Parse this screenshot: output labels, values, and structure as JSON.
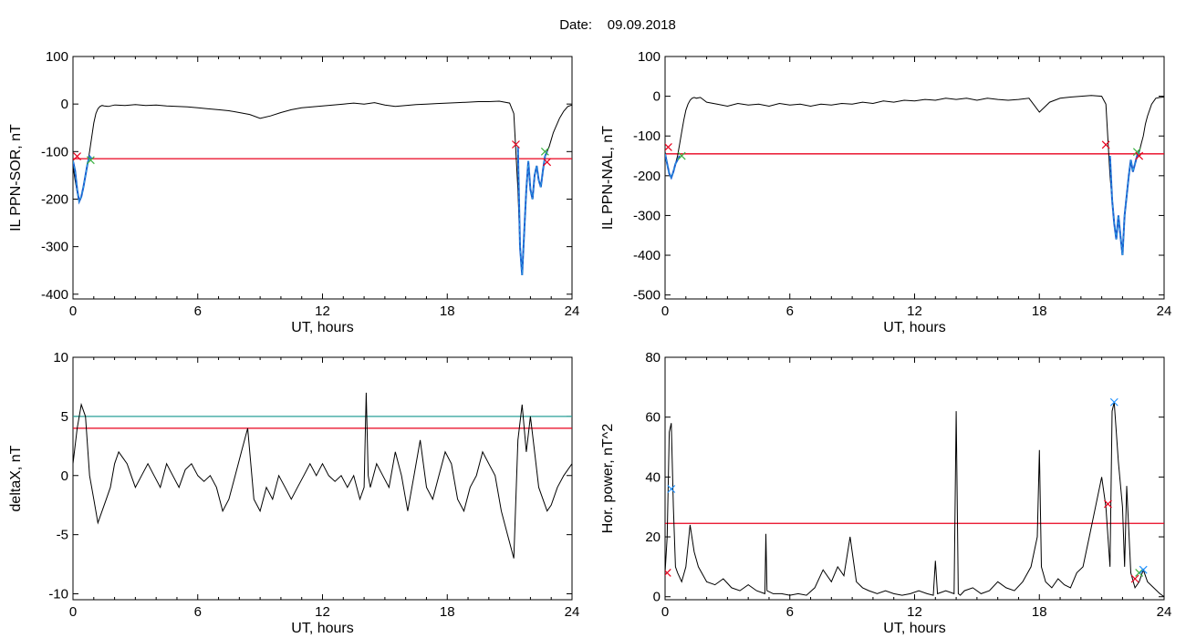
{
  "page": {
    "date_label": "Date:",
    "date_value": "09.09.2018"
  },
  "colors": {
    "trace": "#000000",
    "threshold": "#e8001c",
    "cyan_line": "#2aa198",
    "segment": "#1a5ecf",
    "segment_light": "#2e9fe0",
    "green_marker": "#3cb043",
    "red_marker": "#e8001c",
    "cyan_marker": "#1e90ff"
  },
  "chart_data": [
    {
      "id": "ppn-sor",
      "type": "line",
      "title": "",
      "xlabel": "UT, hours",
      "ylabel": "IL PPN-SOR, nT",
      "xlim": [
        0,
        24
      ],
      "ylim": [
        -410,
        100
      ],
      "xticks": [
        "0",
        "6",
        "12",
        "18",
        "24"
      ],
      "xtick_values": [
        0,
        6,
        12,
        18,
        24
      ],
      "yticks": [
        "100",
        "0",
        "-100",
        "-200",
        "-300",
        "-400"
      ],
      "ytick_values": [
        100,
        0,
        -100,
        -200,
        -300,
        -400
      ],
      "series": [
        {
          "x": [
            0,
            0.1,
            0.2,
            0.3,
            0.4,
            0.5,
            0.6,
            0.7,
            0.8,
            0.9,
            1.0,
            1.1,
            1.2,
            1.3,
            1.4,
            1.5,
            1.7,
            2.0,
            2.5,
            3.0,
            3.5,
            4.0,
            4.5,
            5.0,
            5.5,
            6.0,
            6.5,
            7.0,
            7.5,
            8.0,
            8.5,
            9.0,
            9.5,
            10.0,
            10.5,
            11.0,
            11.5,
            12.0,
            12.5,
            13.0,
            13.5,
            14.0,
            14.5,
            15.0,
            15.5,
            16.0,
            16.5,
            17.0,
            17.5,
            18.0,
            18.5,
            19.0,
            19.5,
            20.0,
            20.5,
            21.0,
            21.2,
            21.4,
            21.5,
            21.6,
            21.7,
            21.8,
            21.9,
            22.0,
            22.1,
            22.2,
            22.3,
            22.4,
            22.5,
            22.6,
            22.7,
            22.8,
            22.9,
            23.0,
            23.1,
            23.2,
            23.4,
            23.6,
            23.8,
            24.0
          ],
          "y": [
            -130,
            -160,
            -185,
            -205,
            -195,
            -175,
            -150,
            -125,
            -100,
            -70,
            -40,
            -20,
            -10,
            -5,
            -3,
            -4,
            -5,
            -2,
            -3,
            -1,
            -3,
            -2,
            -4,
            -5,
            -6,
            -8,
            -10,
            -12,
            -14,
            -18,
            -22,
            -30,
            -25,
            -18,
            -12,
            -8,
            -6,
            -4,
            -2,
            0,
            2,
            0,
            3,
            -2,
            -5,
            -3,
            -1,
            0,
            1,
            2,
            3,
            4,
            5,
            5,
            6,
            2,
            -20,
            -180,
            -300,
            -360,
            -270,
            -180,
            -120,
            -180,
            -200,
            -150,
            -130,
            -160,
            -175,
            -140,
            -110,
            -100,
            -90,
            -75,
            -60,
            -50,
            -30,
            -15,
            -5,
            -2
          ]
        }
      ],
      "threshold": -115,
      "segments": [
        {
          "x": [
            0,
            0.1,
            0.2,
            0.3,
            0.4,
            0.5,
            0.6,
            0.7,
            0.8,
            0.9
          ],
          "y": [
            -120,
            -140,
            -180,
            -205,
            -195,
            -175,
            -150,
            -125,
            -110,
            -115
          ]
        },
        {
          "x": [
            21.4,
            21.5,
            21.6,
            21.7,
            21.8,
            21.9,
            22.0,
            22.1,
            22.2,
            22.3,
            22.4,
            22.5,
            22.6,
            22.7,
            22.8
          ],
          "y": [
            -90,
            -300,
            -360,
            -270,
            -180,
            -120,
            -180,
            -200,
            -150,
            -130,
            -160,
            -175,
            -140,
            -110,
            -100
          ]
        }
      ],
      "markers": [
        {
          "x": 0.2,
          "y": -110,
          "color": "red"
        },
        {
          "x": 0.85,
          "y": -118,
          "color": "green"
        },
        {
          "x": 21.3,
          "y": -85,
          "color": "red"
        },
        {
          "x": 22.7,
          "y": -100,
          "color": "green"
        },
        {
          "x": 22.8,
          "y": -122,
          "color": "red"
        }
      ]
    },
    {
      "id": "ppn-nal",
      "type": "line",
      "title": "",
      "xlabel": "UT, hours",
      "ylabel": "IL PPN-NAL, nT",
      "xlim": [
        0,
        24
      ],
      "ylim": [
        -510,
        100
      ],
      "xticks": [
        "0",
        "6",
        "12",
        "18",
        "24"
      ],
      "xtick_values": [
        0,
        6,
        12,
        18,
        24
      ],
      "yticks": [
        "100",
        "0",
        "-100",
        "-200",
        "-300",
        "-400",
        "-500"
      ],
      "ytick_values": [
        100,
        0,
        -100,
        -200,
        -300,
        -400,
        -500
      ],
      "series": [
        {
          "x": [
            0,
            0.1,
            0.2,
            0.3,
            0.4,
            0.5,
            0.6,
            0.7,
            0.8,
            0.9,
            1.0,
            1.1,
            1.2,
            1.3,
            1.4,
            1.5,
            1.7,
            2.0,
            2.5,
            3.0,
            3.5,
            4.0,
            4.5,
            5.0,
            5.5,
            6.0,
            6.5,
            7.0,
            7.5,
            8.0,
            8.5,
            9.0,
            9.5,
            10.0,
            10.5,
            11.0,
            11.5,
            12.0,
            12.5,
            13.0,
            13.5,
            14.0,
            14.5,
            15.0,
            15.5,
            16.0,
            16.5,
            17.0,
            17.5,
            18.0,
            18.5,
            19.0,
            19.5,
            20.0,
            20.5,
            21.0,
            21.2,
            21.4,
            21.5,
            21.6,
            21.7,
            21.8,
            21.9,
            22.0,
            22.1,
            22.2,
            22.3,
            22.4,
            22.5,
            22.6,
            22.7,
            22.8,
            22.9,
            23.0,
            23.1,
            23.2,
            23.4,
            23.6,
            23.8,
            24.0
          ],
          "y": [
            -140,
            -170,
            -195,
            -205,
            -190,
            -170,
            -150,
            -120,
            -90,
            -60,
            -35,
            -20,
            -10,
            -5,
            -3,
            -5,
            -3,
            -15,
            -20,
            -25,
            -18,
            -22,
            -20,
            -25,
            -18,
            -22,
            -20,
            -25,
            -20,
            -22,
            -18,
            -20,
            -15,
            -18,
            -12,
            -15,
            -10,
            -12,
            -8,
            -10,
            -5,
            -8,
            -5,
            -10,
            -5,
            -8,
            -10,
            -8,
            -5,
            -40,
            -15,
            -5,
            -2,
            0,
            2,
            0,
            -20,
            -200,
            -260,
            -320,
            -360,
            -300,
            -350,
            -400,
            -300,
            -250,
            -200,
            -160,
            -190,
            -170,
            -150,
            -140,
            -120,
            -100,
            -70,
            -50,
            -20,
            -5,
            -3,
            -2
          ]
        }
      ],
      "threshold": -145,
      "segments": [
        {
          "x": [
            0,
            0.1,
            0.2,
            0.3,
            0.4,
            0.5,
            0.6,
            0.7
          ],
          "y": [
            -145,
            -170,
            -195,
            -205,
            -190,
            -170,
            -160,
            -150
          ]
        },
        {
          "x": [
            21.4,
            21.5,
            21.6,
            21.7,
            21.8,
            21.9,
            22.0,
            22.1,
            22.2,
            22.3,
            22.4,
            22.5,
            22.6,
            22.7,
            22.8
          ],
          "y": [
            -150,
            -260,
            -320,
            -360,
            -300,
            -350,
            -400,
            -300,
            -250,
            -200,
            -160,
            -190,
            -170,
            -150,
            -140
          ]
        }
      ],
      "markers": [
        {
          "x": 0.15,
          "y": -128,
          "color": "red"
        },
        {
          "x": 0.8,
          "y": -150,
          "color": "green"
        },
        {
          "x": 21.2,
          "y": -122,
          "color": "red"
        },
        {
          "x": 22.7,
          "y": -140,
          "color": "green"
        },
        {
          "x": 22.8,
          "y": -150,
          "color": "red"
        }
      ]
    },
    {
      "id": "deltax",
      "type": "line",
      "title": "",
      "xlabel": "UT, hours",
      "ylabel": "deltaX, nT",
      "xlim": [
        0,
        24
      ],
      "ylim": [
        -10.5,
        10
      ],
      "xticks": [
        "0",
        "6",
        "12",
        "18",
        "24"
      ],
      "xtick_values": [
        0,
        6,
        12,
        18,
        24
      ],
      "yticks": [
        "10",
        "5",
        "0",
        "-5",
        "-10"
      ],
      "ytick_values": [
        10,
        5,
        0,
        -5,
        -10
      ],
      "series": [
        {
          "x": [
            0,
            0.2,
            0.4,
            0.6,
            0.8,
            1.0,
            1.2,
            1.4,
            1.6,
            1.8,
            2.0,
            2.2,
            2.4,
            2.6,
            2.8,
            3.0,
            3.3,
            3.6,
            3.9,
            4.2,
            4.5,
            4.8,
            5.1,
            5.4,
            5.7,
            6.0,
            6.3,
            6.6,
            6.9,
            7.2,
            7.5,
            7.8,
            8.1,
            8.4,
            8.7,
            9.0,
            9.3,
            9.6,
            9.9,
            10.2,
            10.5,
            10.8,
            11.1,
            11.4,
            11.7,
            12.0,
            12.3,
            12.6,
            12.9,
            13.2,
            13.5,
            13.8,
            14.0,
            14.1,
            14.2,
            14.3,
            14.6,
            14.9,
            15.2,
            15.5,
            15.8,
            16.1,
            16.4,
            16.7,
            17.0,
            17.3,
            17.6,
            17.9,
            18.2,
            18.5,
            18.8,
            19.1,
            19.4,
            19.7,
            20.0,
            20.3,
            20.6,
            20.9,
            21.2,
            21.4,
            21.6,
            21.8,
            22.0,
            22.2,
            22.4,
            22.6,
            22.8,
            23.0,
            23.3,
            23.6,
            24.0
          ],
          "y": [
            1,
            4,
            6,
            5,
            0,
            -2,
            -4,
            -3,
            -2,
            -1,
            1,
            2,
            1.5,
            1,
            0,
            -1,
            0,
            1,
            0,
            -1,
            1,
            0,
            -1,
            0.5,
            1,
            0,
            -0.5,
            0,
            -1,
            -3,
            -2,
            0,
            2,
            4,
            -2,
            -3,
            -1,
            -2,
            0,
            -1,
            -2,
            -1,
            0,
            1,
            0,
            1,
            0,
            -0.5,
            0,
            -1,
            0,
            -2,
            -1,
            7,
            0,
            -1,
            1,
            0,
            -1,
            2,
            0,
            -3,
            0,
            3,
            -1,
            -2,
            0,
            2,
            1,
            -2,
            -3,
            -1,
            0,
            2,
            1,
            0,
            -3,
            -5,
            -7,
            3,
            6,
            2,
            5,
            2,
            -1,
            -2,
            -3,
            -2.5,
            -1,
            0,
            1
          ]
        }
      ],
      "threshold": 4,
      "hline2": 5,
      "segments": [],
      "markers": []
    },
    {
      "id": "hor-power",
      "type": "line",
      "title": "",
      "xlabel": "UT, hours",
      "ylabel": "Hor. power, nT^2",
      "xlim": [
        0,
        24
      ],
      "ylim": [
        -1,
        80
      ],
      "xticks": [
        "0",
        "6",
        "12",
        "18",
        "24"
      ],
      "xtick_values": [
        0,
        6,
        12,
        18,
        24
      ],
      "yticks": [
        "80",
        "60",
        "40",
        "20",
        "0"
      ],
      "ytick_values": [
        80,
        60,
        40,
        20,
        0
      ],
      "series": [
        {
          "x": [
            0,
            0.1,
            0.2,
            0.3,
            0.4,
            0.5,
            0.6,
            0.8,
            1.0,
            1.2,
            1.4,
            1.6,
            2.0,
            2.4,
            2.8,
            3.2,
            3.6,
            4.0,
            4.4,
            4.8,
            4.85,
            4.9,
            5.2,
            5.6,
            6.0,
            6.4,
            6.8,
            7.2,
            7.6,
            8.0,
            8.3,
            8.6,
            8.9,
            9.2,
            9.5,
            9.8,
            10.2,
            10.6,
            11.0,
            11.4,
            11.8,
            12.2,
            12.6,
            12.9,
            13.0,
            13.1,
            13.5,
            13.9,
            14.0,
            14.1,
            14.2,
            14.4,
            14.8,
            15.2,
            15.6,
            16.0,
            16.4,
            16.8,
            17.2,
            17.6,
            17.9,
            18.0,
            18.1,
            18.3,
            18.6,
            18.9,
            19.2,
            19.5,
            19.8,
            20.1,
            20.4,
            20.7,
            21.0,
            21.2,
            21.4,
            21.5,
            21.6,
            21.8,
            22.0,
            22.1,
            22.2,
            22.4,
            22.6,
            22.8,
            23.0,
            23.2,
            23.5,
            23.8,
            24.0
          ],
          "y": [
            8,
            20,
            55,
            58,
            30,
            10,
            8,
            5,
            10,
            24,
            15,
            10,
            5,
            4,
            6,
            3,
            2,
            4,
            2,
            1,
            21,
            2,
            1,
            1,
            0.5,
            1,
            0.5,
            3,
            9,
            5,
            10,
            7,
            20,
            5,
            3,
            2,
            1,
            2,
            1,
            0.5,
            1,
            2,
            1,
            0.5,
            12,
            1,
            2,
            1,
            62,
            1,
            0.5,
            2,
            3,
            1,
            2,
            5,
            3,
            2,
            5,
            10,
            20,
            49,
            10,
            5,
            3,
            6,
            4,
            3,
            8,
            10,
            20,
            30,
            40,
            30,
            10,
            62,
            65,
            45,
            30,
            10,
            37,
            8,
            3,
            5,
            9,
            5,
            3,
            1,
            0
          ]
        }
      ],
      "threshold": 24.5,
      "segments": [],
      "markers": [
        {
          "x": 0.1,
          "y": 8,
          "color": "red"
        },
        {
          "x": 0.3,
          "y": 36,
          "color": "cyan"
        },
        {
          "x": 21.3,
          "y": 31,
          "color": "red"
        },
        {
          "x": 21.6,
          "y": 65,
          "color": "cyan"
        },
        {
          "x": 22.6,
          "y": 6,
          "color": "red"
        },
        {
          "x": 22.8,
          "y": 8,
          "color": "green"
        },
        {
          "x": 23.0,
          "y": 9,
          "color": "cyan"
        }
      ]
    }
  ]
}
